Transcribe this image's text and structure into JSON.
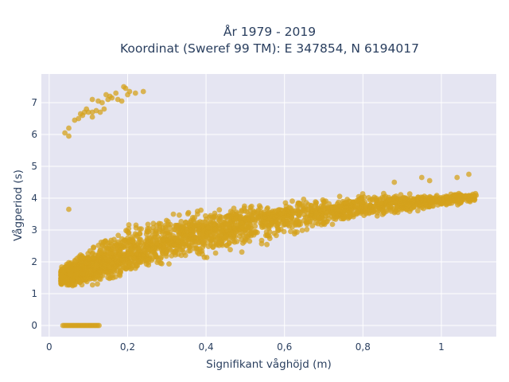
{
  "chart_data": {
    "type": "scatter",
    "title_lines": [
      "År 1979 - 2019",
      "Koordinat (Sweref 99 TM): E 347854, N 6194017"
    ],
    "xlabel": "Signifikant våghöjd (m)",
    "ylabel": "Vågperiod (s)",
    "xlim": [
      -0.02,
      1.14
    ],
    "ylim": [
      -0.35,
      7.9
    ],
    "xticks": [
      0,
      0.2,
      0.4,
      0.6,
      0.8,
      1
    ],
    "xtick_labels": [
      "0",
      "0,2",
      "0,4",
      "0,6",
      "0,8",
      "1"
    ],
    "yticks": [
      0,
      1,
      2,
      3,
      4,
      5,
      6,
      7
    ],
    "ytick_labels": [
      "0",
      "1",
      "2",
      "3",
      "4",
      "5",
      "6",
      "7"
    ],
    "grid": true,
    "colors": {
      "marker": "#d4a21c",
      "plot_bg": "#e5e5f2",
      "grid": "#ffffff"
    },
    "marker_opacity": 0.75,
    "main_cloud": {
      "description_ranges": "dense band from Hs 0.03 to 1.09 m",
      "center_curve": [
        [
          0.03,
          1.5
        ],
        [
          0.1,
          1.75
        ],
        [
          0.2,
          2.2
        ],
        [
          0.3,
          2.65
        ],
        [
          0.4,
          2.95
        ],
        [
          0.5,
          3.2
        ],
        [
          0.6,
          3.4
        ],
        [
          0.7,
          3.55
        ],
        [
          0.8,
          3.75
        ],
        [
          0.9,
          3.85
        ],
        [
          1.0,
          3.95
        ],
        [
          1.08,
          4.05
        ]
      ],
      "upper_curve": [
        [
          0.03,
          1.9
        ],
        [
          0.1,
          2.6
        ],
        [
          0.2,
          3.3
        ],
        [
          0.3,
          3.6
        ],
        [
          0.4,
          3.75
        ],
        [
          0.5,
          3.9
        ],
        [
          0.6,
          4.05
        ],
        [
          0.7,
          4.15
        ],
        [
          0.8,
          4.25
        ],
        [
          0.9,
          4.2
        ],
        [
          1.0,
          4.15
        ],
        [
          1.08,
          4.2
        ]
      ],
      "lower_curve": [
        [
          0.03,
          1.2
        ],
        [
          0.1,
          1.1
        ],
        [
          0.2,
          1.4
        ],
        [
          0.3,
          1.75
        ],
        [
          0.4,
          2.0
        ],
        [
          0.5,
          2.2
        ],
        [
          0.6,
          2.6
        ],
        [
          0.7,
          3.0
        ],
        [
          0.8,
          3.35
        ],
        [
          0.9,
          3.45
        ],
        [
          1.0,
          3.6
        ],
        [
          1.08,
          3.8
        ]
      ]
    },
    "zero_period_band": {
      "x_range": [
        0.035,
        0.13
      ],
      "y": 0
    },
    "outliers": [
      [
        0.04,
        6.05
      ],
      [
        0.05,
        5.95
      ],
      [
        0.05,
        6.2
      ],
      [
        0.065,
        6.45
      ],
      [
        0.075,
        6.5
      ],
      [
        0.08,
        6.65
      ],
      [
        0.085,
        6.6
      ],
      [
        0.09,
        6.7
      ],
      [
        0.095,
        6.8
      ],
      [
        0.1,
        6.7
      ],
      [
        0.11,
        6.55
      ],
      [
        0.11,
        6.7
      ],
      [
        0.12,
        6.75
      ],
      [
        0.13,
        6.7
      ],
      [
        0.11,
        7.1
      ],
      [
        0.125,
        7.05
      ],
      [
        0.135,
        7.0
      ],
      [
        0.14,
        6.8
      ],
      [
        0.145,
        7.25
      ],
      [
        0.15,
        7.1
      ],
      [
        0.155,
        7.2
      ],
      [
        0.16,
        7.15
      ],
      [
        0.17,
        7.3
      ],
      [
        0.175,
        7.1
      ],
      [
        0.185,
        7.05
      ],
      [
        0.19,
        7.5
      ],
      [
        0.195,
        7.45
      ],
      [
        0.2,
        7.25
      ],
      [
        0.205,
        7.35
      ],
      [
        0.22,
        7.3
      ],
      [
        0.24,
        7.35
      ],
      [
        0.05,
        3.65
      ],
      [
        0.88,
        4.5
      ],
      [
        0.95,
        4.65
      ],
      [
        0.97,
        4.55
      ],
      [
        1.04,
        4.65
      ],
      [
        1.07,
        4.75
      ]
    ]
  }
}
